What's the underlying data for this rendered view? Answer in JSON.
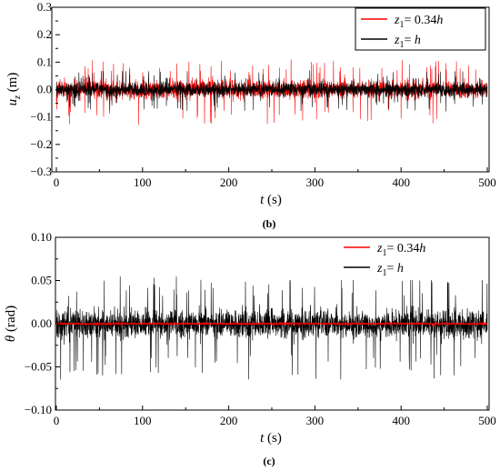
{
  "chart_data": [
    {
      "type": "line",
      "panel": "(b)",
      "xlabel": "t (s)",
      "ylabel": "u_z (m)",
      "xlim": [
        0,
        500
      ],
      "ylim": [
        -0.3,
        0.3
      ],
      "xticks": [
        "0",
        "100",
        "200",
        "300",
        "400",
        "500"
      ],
      "yticks": [
        "0.3",
        "0.2",
        "0.1",
        "0.0",
        "−0.1",
        "−0.2",
        "−0.3"
      ],
      "legend_position": "top-right",
      "grid": false,
      "series": [
        {
          "name": "z1= 0.34h",
          "color": "#ff0000",
          "amplitude_typical": 0.05,
          "peak_max": 0.11,
          "peak_min": -0.13
        },
        {
          "name": "z1= h",
          "color": "#000000",
          "amplitude_typical": 0.04,
          "peak_max": 0.07,
          "peak_min": -0.08
        }
      ]
    },
    {
      "type": "line",
      "panel": "(c)",
      "xlabel": "t (s)",
      "ylabel": "θ (rad)",
      "xlim": [
        0,
        500
      ],
      "ylim": [
        -0.1,
        0.1
      ],
      "xticks": [
        "0",
        "100",
        "200",
        "300",
        "400",
        "500"
      ],
      "yticks": [
        "0.10",
        "0.05",
        "0.00",
        "−0.05",
        "−0.10"
      ],
      "legend_position": "top-right",
      "grid": false,
      "series": [
        {
          "name": "z1= h",
          "color": "#000000",
          "amplitude_typical": 0.025,
          "peak_max": 0.057,
          "peak_min": -0.065
        },
        {
          "name": "z1= 0.34h",
          "color": "#ff0000",
          "amplitude_typical": 0.002,
          "peak_max": 0.003,
          "peak_min": -0.003
        }
      ]
    }
  ]
}
